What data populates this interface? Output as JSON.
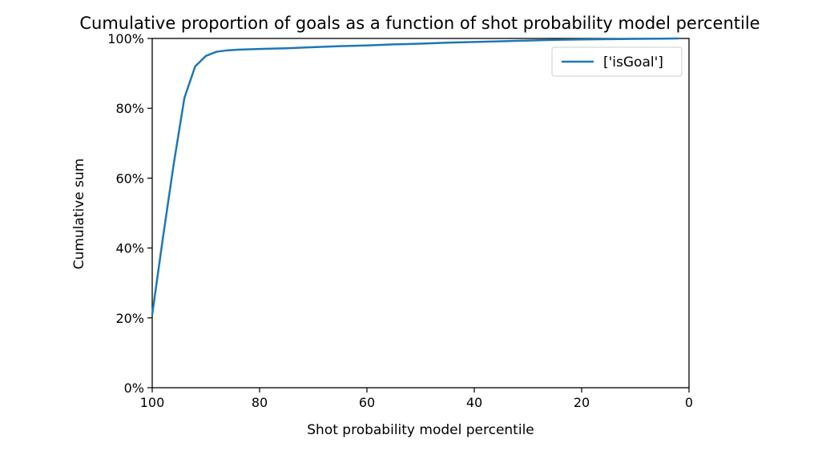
{
  "chart_data": {
    "type": "line",
    "title": "Cumulative proportion of goals as a function of shot probability model percentile",
    "xlabel": "Shot probability model percentile",
    "ylabel": "Cumulative sum",
    "xlim": [
      100,
      0
    ],
    "ylim": [
      0,
      100
    ],
    "x_inverted": true,
    "xticks": [
      100,
      80,
      60,
      40,
      20,
      0
    ],
    "xtick_labels": [
      "100",
      "80",
      "60",
      "40",
      "20",
      "0"
    ],
    "yticks": [
      0,
      20,
      40,
      60,
      80,
      100
    ],
    "ytick_labels": [
      "0%",
      "20%",
      "40%",
      "60%",
      "80%",
      "100%"
    ],
    "grid": false,
    "legend_position": "top-right",
    "series": [
      {
        "name": "['isGoal']",
        "color": "#1f77b4",
        "x": [
          100,
          98,
          96,
          94,
          92,
          90,
          88,
          86,
          84,
          80,
          75,
          70,
          65,
          60,
          55,
          50,
          45,
          40,
          35,
          30,
          25,
          20,
          15,
          10,
          5,
          2
        ],
        "y": [
          21,
          43,
          64,
          83,
          92,
          95,
          96.2,
          96.6,
          96.8,
          97,
          97.2,
          97.5,
          97.8,
          98,
          98.3,
          98.5,
          98.8,
          99,
          99.2,
          99.4,
          99.6,
          99.7,
          99.8,
          99.9,
          99.95,
          100
        ]
      }
    ]
  }
}
